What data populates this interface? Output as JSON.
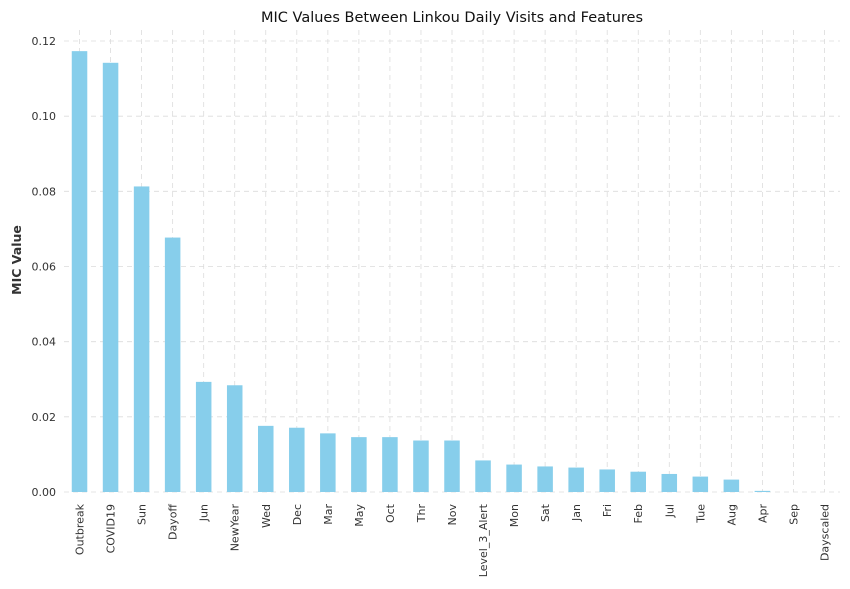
{
  "chart_data": {
    "type": "bar",
    "title": "MIC Values Between Linkou Daily Visits and Features",
    "xlabel": "",
    "ylabel": "MIC Value",
    "ylim": [
      0,
      0.12
    ],
    "yticks": [
      "0.00",
      "0.02",
      "0.04",
      "0.06",
      "0.08",
      "0.10",
      "0.12"
    ],
    "grid": true,
    "legend": "none",
    "bar_color": "#87CEEB",
    "categories": [
      "Outbreak",
      "COVID19",
      "Sun",
      "Dayoff",
      "Jun",
      "NewYear",
      "Wed",
      "Dec",
      "Mar",
      "May",
      "Oct",
      "Thr",
      "Nov",
      "Level_3_Alert",
      "Mon",
      "Sat",
      "Jan",
      "Fri",
      "Feb",
      "Jul",
      "Tue",
      "Aug",
      "Apr",
      "Sep",
      "Dayscaled"
    ],
    "values": [
      0.1173,
      0.1142,
      0.0813,
      0.0677,
      0.0293,
      0.0284,
      0.0176,
      0.0171,
      0.0156,
      0.0146,
      0.0146,
      0.0137,
      0.0137,
      0.0084,
      0.0073,
      0.0068,
      0.0065,
      0.006,
      0.0054,
      0.0048,
      0.0041,
      0.0033,
      0.0003,
      0.0,
      0.0
    ]
  }
}
